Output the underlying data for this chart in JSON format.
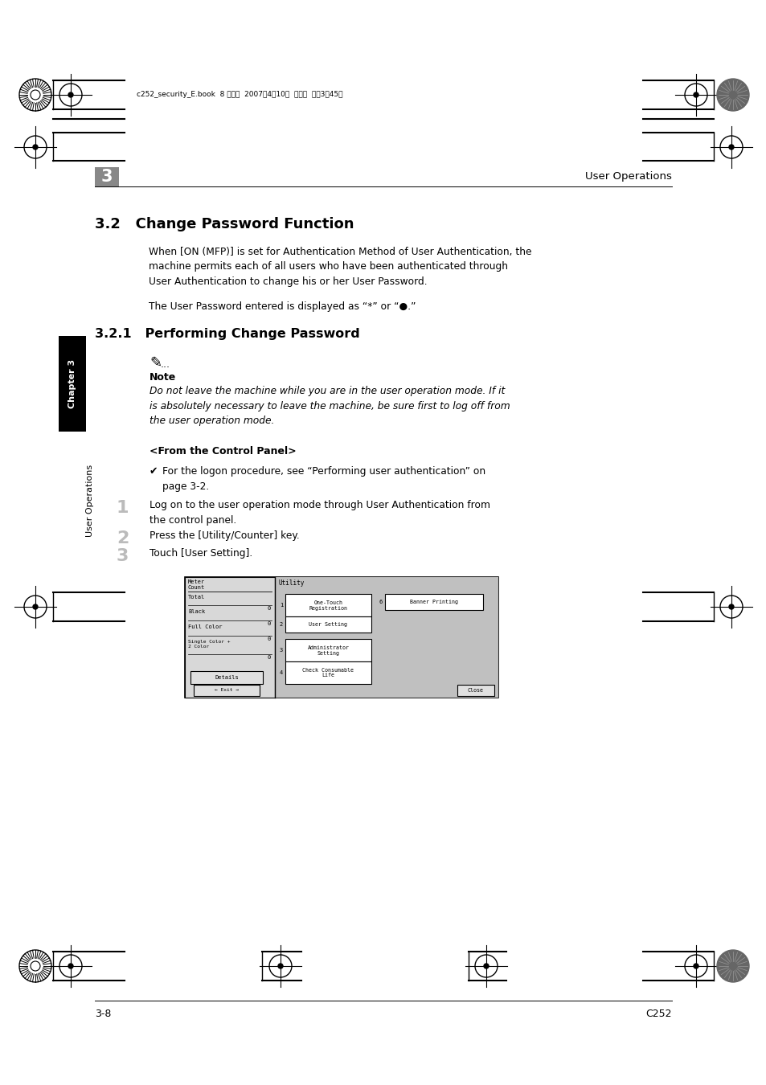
{
  "page_bg": "#ffffff",
  "header_text": "c252_security_E.book  8 ページ  2007年4月10日  火曜日  午後3時45分",
  "chapter_num": "3",
  "chapter_label": "User Operations",
  "section_title": "3.2   Change Password Function",
  "section_body1": "When [ON (MFP)] is set for Authentication Method of User Authentication, the\nmachine permits each of all users who have been authenticated through\nUser Authentication to change his or her User Password.",
  "section_body2": "The User Password entered is displayed as “*” or “●.”",
  "subsection_title": "3.2.1   Performing Change Password",
  "note_label": "Note",
  "note_text": "Do not leave the machine while you are in the user operation mode. If it\nis absolutely necessary to leave the machine, be sure first to log off from\nthe user operation mode.",
  "control_panel_header": "<From the Control Panel>",
  "check_note": "For the logon procedure, see “Performing user authentication” on\npage 3-2.",
  "step1": "Log on to the user operation mode through User Authentication from\nthe control panel.",
  "step2": "Press the [Utility/Counter] key.",
  "step3": "Touch [User Setting].",
  "footer_left": "3-8",
  "footer_right": "C252",
  "sidebar_chapter": "Chapter 3",
  "sidebar_ops": "User Operations",
  "screen_left_labels": [
    "Meter\nCount",
    "Total",
    "Black",
    "Full Color",
    "Single Color +\n2 Color"
  ],
  "screen_right_buttons": [
    "One-Touch\nRegistration",
    "User Setting",
    "Administrator\nSetting",
    "Check Consumable\nLife"
  ],
  "screen_right_nums": [
    "1",
    "2",
    "3",
    "4"
  ],
  "screen_banner": "Banner Printing",
  "screen_banner_num": "6",
  "screen_utility": "Utility",
  "screen_details": "Details",
  "screen_exit": "Exit",
  "screen_close": "Close"
}
